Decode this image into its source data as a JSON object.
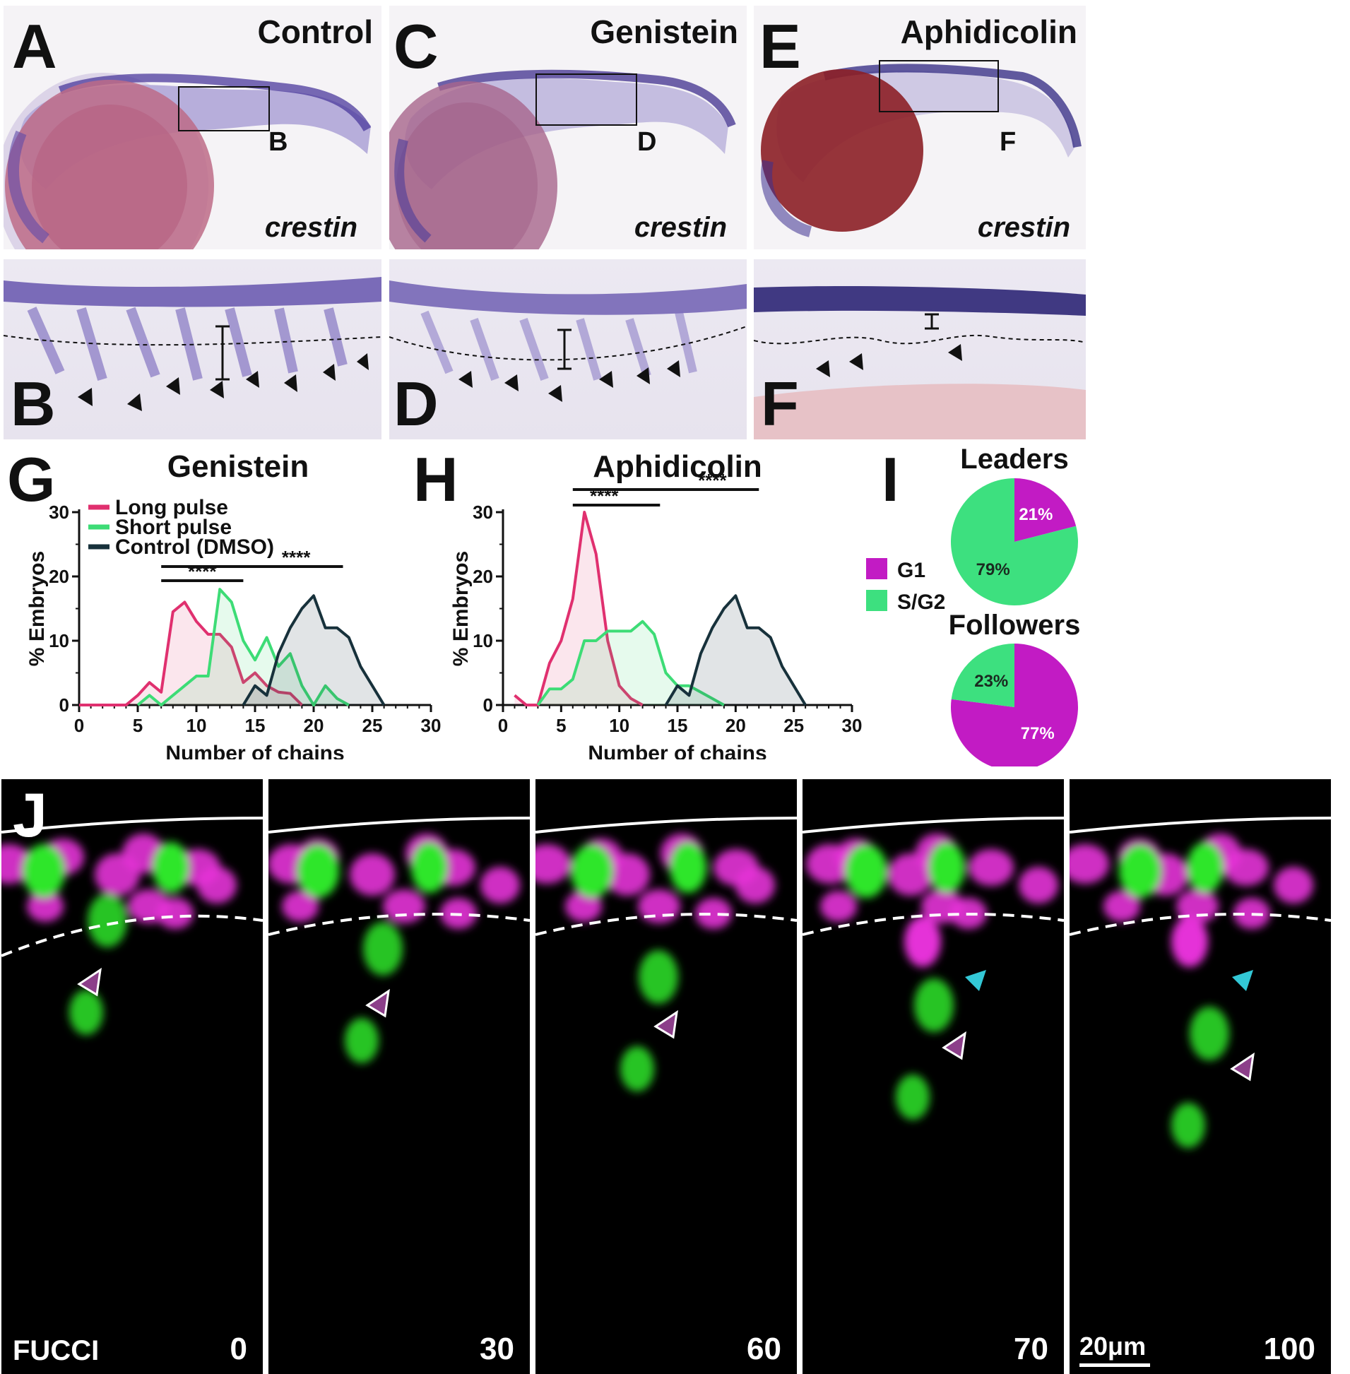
{
  "panels_top": [
    {
      "letter": "A",
      "title": "Control",
      "gene": "crestin",
      "box_label": "B"
    },
    {
      "letter": "C",
      "title": "Genistein",
      "gene": "crestin",
      "box_label": "D"
    },
    {
      "letter": "E",
      "title": "Aphidicolin",
      "gene": "crestin",
      "box_label": "F"
    }
  ],
  "panels_zoom": [
    {
      "letter": "B"
    },
    {
      "letter": "D"
    },
    {
      "letter": "F"
    }
  ],
  "colors": {
    "long_pulse": "#e0306f",
    "short_pulse": "#3ddc76",
    "control": "#17313b",
    "g1": "#c21bc4",
    "s_g2": "#3de07f"
  },
  "chart_data": [
    {
      "panel": "G",
      "type": "area",
      "title": "Genistein",
      "xlabel": "Number of chains",
      "ylabel": "% Embryos",
      "xlim": [
        0,
        30
      ],
      "ylim": [
        0,
        30
      ],
      "xticks": [
        "0",
        "5",
        "10",
        "15",
        "20",
        "25",
        "30"
      ],
      "yticks": [
        "0",
        "10",
        "20",
        "30"
      ],
      "significance": [
        {
          "from": 7,
          "to": 14,
          "label": "****"
        },
        {
          "from": 7,
          "to": 22.5,
          "label": "****"
        }
      ],
      "series": [
        {
          "name": "Long pulse",
          "color": "#e0306f",
          "fill": "rgba(224,48,111,0.12)",
          "x": [
            0,
            1,
            2,
            3,
            4,
            5,
            6,
            7,
            8,
            9,
            10,
            11,
            12,
            13,
            14,
            15,
            16,
            17,
            18,
            19
          ],
          "y": [
            0,
            0,
            0,
            0,
            0,
            1.5,
            3.5,
            2,
            14.5,
            16,
            13,
            11,
            11,
            9,
            3.5,
            5,
            3,
            2,
            1.8,
            0
          ]
        },
        {
          "name": "Short pulse",
          "color": "#3ddc76",
          "fill": "rgba(61,220,118,0.13)",
          "x": [
            5,
            6,
            7,
            8,
            9,
            10,
            11,
            12,
            13,
            14,
            15,
            16,
            17,
            18,
            19,
            20,
            21,
            22,
            23
          ],
          "y": [
            0,
            1.5,
            0,
            1.5,
            3,
            4.5,
            4.5,
            18,
            16,
            10,
            7,
            10.5,
            6,
            8,
            3,
            0,
            3,
            1,
            0
          ]
        },
        {
          "name": "Control (DMSO)",
          "color": "#17313b",
          "fill": "rgba(23,49,59,0.13)",
          "x": [
            14,
            15,
            16,
            17,
            18,
            19,
            20,
            21,
            22,
            23,
            24,
            25,
            26
          ],
          "y": [
            0,
            3,
            1.5,
            8,
            12,
            15,
            17,
            12,
            12,
            10.5,
            6,
            3,
            0
          ]
        }
      ]
    },
    {
      "panel": "H",
      "type": "area",
      "title": "Aphidicolin",
      "xlabel": "Number of chains",
      "ylabel": "% Embryos",
      "xlim": [
        0,
        30
      ],
      "ylim": [
        0,
        30
      ],
      "xticks": [
        "0",
        "5",
        "10",
        "15",
        "20",
        "25",
        "30"
      ],
      "yticks": [
        "0",
        "10",
        "20",
        "30"
      ],
      "significance": [
        {
          "from": 6,
          "to": 13.5,
          "label": "****"
        },
        {
          "from": 6,
          "to": 22,
          "label": "****"
        }
      ],
      "series": [
        {
          "name": "Long pulse",
          "color": "#e0306f",
          "fill": "rgba(224,48,111,0.12)",
          "x": [
            1,
            2,
            3,
            4,
            5,
            6,
            7,
            8,
            9,
            10,
            11,
            12
          ],
          "y": [
            1.5,
            0,
            0,
            6.5,
            10,
            16.5,
            30,
            23.5,
            10,
            3,
            1,
            0
          ]
        },
        {
          "name": "Short pulse",
          "color": "#3ddc76",
          "fill": "rgba(61,220,118,0.13)",
          "x": [
            3,
            4,
            5,
            6,
            7,
            8,
            9,
            10,
            11,
            12,
            13,
            14,
            15,
            16,
            17,
            18,
            19
          ],
          "y": [
            0,
            2.5,
            2.5,
            4,
            10,
            10,
            11.5,
            11.5,
            11.5,
            13,
            11,
            5,
            3,
            3,
            2,
            1,
            0
          ]
        },
        {
          "name": "Control (DMSO)",
          "color": "#17313b",
          "fill": "rgba(23,49,59,0.13)",
          "x": [
            14,
            15,
            16,
            17,
            18,
            19,
            20,
            21,
            22,
            23,
            24,
            25,
            26
          ],
          "y": [
            0,
            3,
            1.5,
            8,
            12,
            15,
            17,
            12,
            12,
            10.5,
            6,
            3,
            0
          ]
        }
      ]
    },
    {
      "panel": "I",
      "type": "pie",
      "legend": [
        {
          "label": "G1",
          "color": "#c21bc4"
        },
        {
          "label": "S/G2",
          "color": "#3de07f"
        }
      ],
      "pies": [
        {
          "title": "Leaders",
          "slices": [
            {
              "label": "G1",
              "value": 21,
              "text": "21%"
            },
            {
              "label": "S/G2",
              "value": 79,
              "text": "79%"
            }
          ]
        },
        {
          "title": "Followers",
          "slices": [
            {
              "label": "G1",
              "value": 77,
              "text": "77%"
            },
            {
              "label": "S/G2",
              "value": 23,
              "text": "23%"
            }
          ]
        }
      ]
    }
  ],
  "panel_labels": {
    "g": "G",
    "h": "H",
    "i": "I",
    "j": "J"
  },
  "fucci": {
    "name": "FUCCI",
    "scale_label": "20μm",
    "frames": [
      {
        "time": "0"
      },
      {
        "time": "30"
      },
      {
        "time": "60"
      },
      {
        "time": "70"
      },
      {
        "time": "100"
      }
    ]
  }
}
